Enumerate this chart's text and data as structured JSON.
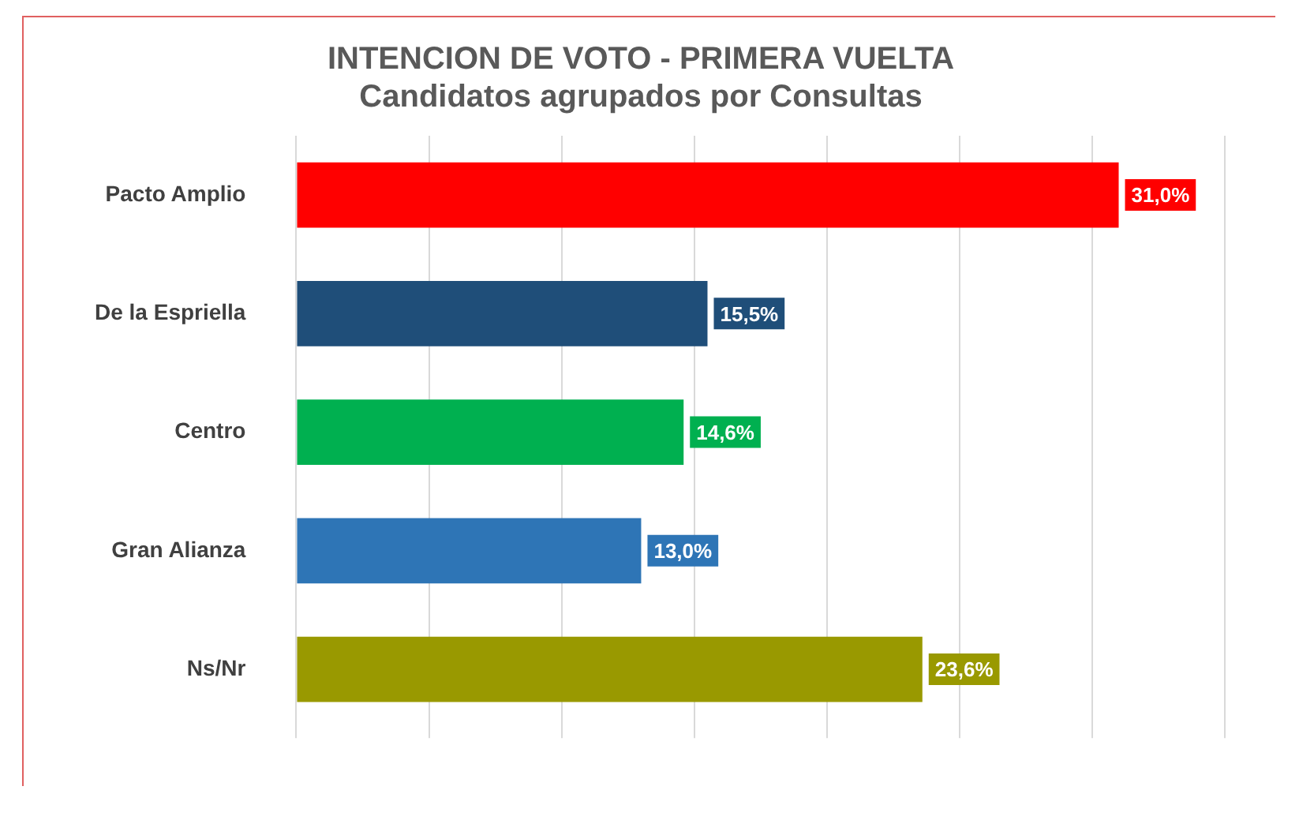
{
  "chart_data": {
    "type": "bar",
    "orientation": "horizontal",
    "title": "INTENCION DE VOTO - PRIMERA VUELTA",
    "subtitle": "Candidatos agrupados por Consultas",
    "categories": [
      "Pacto Amplio",
      "De la Espriella",
      "Centro",
      "Gran Alianza",
      "Ns/Nr"
    ],
    "values": [
      31.0,
      15.5,
      14.6,
      13.0,
      23.6
    ],
    "colors": [
      "#ff0000",
      "#1f4e79",
      "#00b050",
      "#2e75b6",
      "#999900"
    ],
    "value_labels": [
      "31,0%",
      "15,5%",
      "14,6%",
      "13,0%",
      "23,6%"
    ],
    "xlim": [
      0,
      35
    ],
    "xticks": [
      {
        "value": 0,
        "label": null
      },
      {
        "value": 5,
        "label": null
      },
      {
        "value": 10,
        "label": null
      },
      {
        "value": 15,
        "label": null
      },
      {
        "value": 20,
        "label": null
      },
      {
        "value": 25,
        "label": null
      },
      {
        "value": 30,
        "label": null
      },
      {
        "value": 35,
        "label": null
      }
    ],
    "tick_labels": "y",
    "grid": "x",
    "legend": false
  }
}
